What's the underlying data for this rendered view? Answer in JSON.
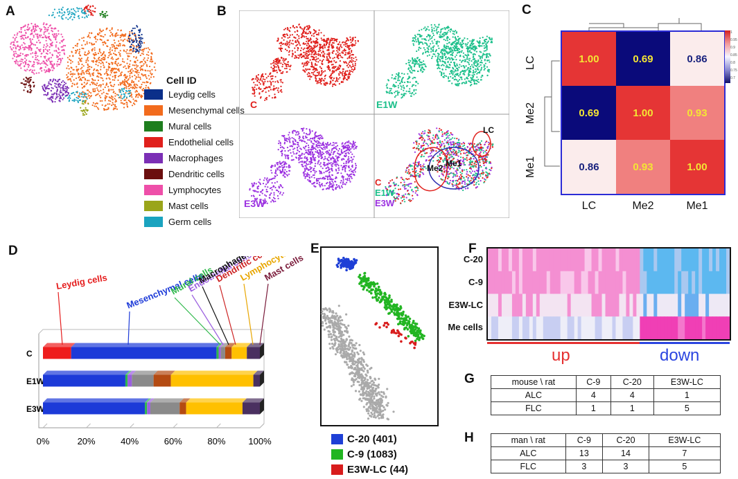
{
  "panels": {
    "A": "A",
    "B": "B",
    "C": "C",
    "D": "D",
    "E": "E",
    "F": "F",
    "G": "G",
    "H": "H"
  },
  "panelA": {
    "legend_title": "Cell ID",
    "cells": [
      {
        "label": "Leydig cells",
        "color": "#0b2f8a"
      },
      {
        "label": "Mesenchymal cells",
        "color": "#f26b1d"
      },
      {
        "label": "Mural cells",
        "color": "#1e7e1e"
      },
      {
        "label": "Endothelial cells",
        "color": "#e0201c"
      },
      {
        "label": "Macrophages",
        "color": "#7b2fb5"
      },
      {
        "label": "Dendritic cells",
        "color": "#6b0f0f"
      },
      {
        "label": "Lymphocytes",
        "color": "#ee4fa9"
      },
      {
        "label": "Mast cells",
        "color": "#9aa51a"
      },
      {
        "label": "Germ cells",
        "color": "#1aa3bf"
      }
    ]
  },
  "panelB": {
    "quadrants": [
      {
        "label": "C",
        "color": "#e0201c"
      },
      {
        "label": "E1W",
        "color": "#1bbf8a"
      },
      {
        "label": "E3W",
        "color": "#9b30e0"
      }
    ],
    "merge_labels": [
      "C",
      "E1W",
      "E3W"
    ],
    "cluster_labels": {
      "lc": "LC",
      "me1": "Me1",
      "me2": "Me2"
    }
  },
  "panelC": {
    "row_labels": [
      "LC",
      "Me2",
      "Me1"
    ],
    "col_labels": [
      "LC",
      "Me2",
      "Me1"
    ],
    "matrix": [
      [
        "1.00",
        "0.69",
        "0.86"
      ],
      [
        "0.69",
        "1.00",
        "0.93"
      ],
      [
        "0.86",
        "0.93",
        "1.00"
      ]
    ],
    "colorbar_ticks": [
      "1",
      "0.95",
      "0.9",
      "0.85",
      "0.8",
      "0.75",
      "0.7"
    ]
  },
  "chart_data": [
    {
      "type": "bar",
      "orientation": "horizontal-stacked",
      "title": "",
      "categories": [
        "C",
        "E1W",
        "E3W"
      ],
      "xlabel": "",
      "ylabel": "",
      "xlim": [
        0,
        100
      ],
      "x_tick_labels": [
        "0%",
        "20%",
        "40%",
        "60%",
        "80%",
        "100%"
      ],
      "series": [
        {
          "name": "Leydig cells",
          "color": "#ee1c1c",
          "values": [
            13,
            0,
            0
          ]
        },
        {
          "name": "Mesenchymal cells",
          "color": "#1c3ad8",
          "values": [
            67,
            38,
            47
          ]
        },
        {
          "name": "Mural cells",
          "color": "#2eb84a",
          "values": [
            1,
            1,
            1
          ]
        },
        {
          "name": "Endothelial cells",
          "color": "#9b5fe0",
          "values": [
            1,
            2,
            1.5
          ]
        },
        {
          "name": "Macrophages",
          "color": "#8a8a8a",
          "values": [
            2,
            10,
            13.5
          ]
        },
        {
          "name": "Dendritic cells",
          "color": "#b44b12",
          "values": [
            3,
            8,
            3
          ]
        },
        {
          "name": "Lymphocytes",
          "color": "#ffc000",
          "values": [
            7,
            38,
            26
          ]
        },
        {
          "name": "Mast cells",
          "color": "#4a3060",
          "values": [
            6,
            3,
            8
          ]
        }
      ]
    }
  ],
  "panelE": {
    "legend": [
      {
        "label": "C-20 (401)",
        "color": "#1e3fd6"
      },
      {
        "label": "C-9 (1083)",
        "color": "#22b522"
      },
      {
        "label": "E3W-LC (44)",
        "color": "#d81c1c"
      }
    ]
  },
  "panelF": {
    "rows": [
      "C-20",
      "C-9",
      "E3W-LC",
      "Me cells"
    ],
    "up_label": "up",
    "down_label": "down",
    "up_color": "#e53030",
    "down_color": "#2b45e0"
  },
  "panelG": {
    "header": [
      "mouse \\ rat",
      "C-9",
      "C-20",
      "E3W-LC"
    ],
    "rows": [
      [
        "ALC",
        "4",
        "4",
        "1"
      ],
      [
        "FLC",
        "1",
        "1",
        "5"
      ]
    ]
  },
  "panelH": {
    "header": [
      "man \\ rat",
      "C-9",
      "C-20",
      "E3W-LC"
    ],
    "rows": [
      [
        "ALC",
        "13",
        "14",
        "7"
      ],
      [
        "FLC",
        "3",
        "3",
        "5"
      ]
    ]
  }
}
